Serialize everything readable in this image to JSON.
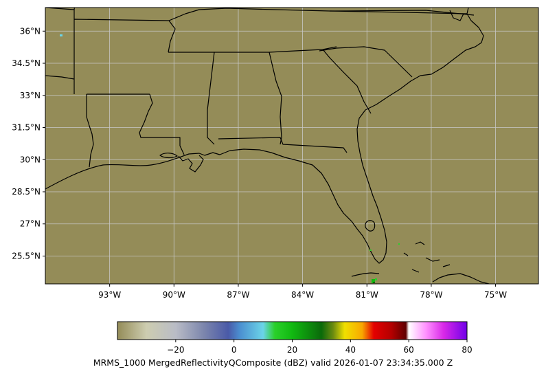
{
  "map": {
    "background_color": "#948c58",
    "grid_color": "#c8c8c8",
    "boundary_color": "#000000",
    "extent": {
      "lon": [
        -96.0,
        -73.0
      ],
      "lat": [
        24.2,
        37.1
      ]
    },
    "lon_ticks": [
      {
        "value": -93,
        "label": "93°W"
      },
      {
        "value": -90,
        "label": "90°W"
      },
      {
        "value": -87,
        "label": "87°W"
      },
      {
        "value": -84,
        "label": "84°W"
      },
      {
        "value": -81,
        "label": "81°W"
      },
      {
        "value": -78,
        "label": "78°W"
      },
      {
        "value": -75,
        "label": "75°W"
      }
    ],
    "lat_ticks": [
      {
        "value": 36,
        "label": "36°N"
      },
      {
        "value": 34.5,
        "label": "34.5°N"
      },
      {
        "value": 33,
        "label": "33°N"
      },
      {
        "value": 31.5,
        "label": "31.5°N"
      },
      {
        "value": 30,
        "label": "30°N"
      },
      {
        "value": 28.5,
        "label": "28.5°N"
      },
      {
        "value": 27,
        "label": "27°N"
      },
      {
        "value": 25.5,
        "label": "25.5°N"
      }
    ]
  },
  "colorbar": {
    "range": [
      -40,
      80
    ],
    "ticks": [
      {
        "value": -20,
        "label": "−20"
      },
      {
        "value": 0,
        "label": "0"
      },
      {
        "value": 20,
        "label": "20"
      },
      {
        "value": 40,
        "label": "40"
      },
      {
        "value": 60,
        "label": "60"
      },
      {
        "value": 80,
        "label": "80"
      }
    ],
    "stops": [
      {
        "value": -40,
        "color": "#948c58"
      },
      {
        "value": -30,
        "color": "#cdcdb0"
      },
      {
        "value": -20,
        "color": "#b9bcc6"
      },
      {
        "value": -10,
        "color": "#7a84ac"
      },
      {
        "value": -2,
        "color": "#4a5aa8"
      },
      {
        "value": 2,
        "color": "#4b8fd0"
      },
      {
        "value": 10,
        "color": "#6bd4e8"
      },
      {
        "value": 14,
        "color": "#2ad02a"
      },
      {
        "value": 20,
        "color": "#11b911"
      },
      {
        "value": 30,
        "color": "#0a6a0a"
      },
      {
        "value": 34,
        "color": "#6a8a10"
      },
      {
        "value": 38,
        "color": "#f0e000"
      },
      {
        "value": 44,
        "color": "#f8a800"
      },
      {
        "value": 48,
        "color": "#e40000"
      },
      {
        "value": 54,
        "color": "#b40000"
      },
      {
        "value": 59,
        "color": "#600000"
      },
      {
        "value": 60,
        "color": "#ffffff"
      },
      {
        "value": 66,
        "color": "#ff90ff"
      },
      {
        "value": 72,
        "color": "#d828e8"
      },
      {
        "value": 80,
        "color": "#7000e8"
      }
    ]
  },
  "caption": "MRMS_1000  MergedReflectivityQComposite (dBZ) valid 2026-01-07 23:34:35.000 Z"
}
